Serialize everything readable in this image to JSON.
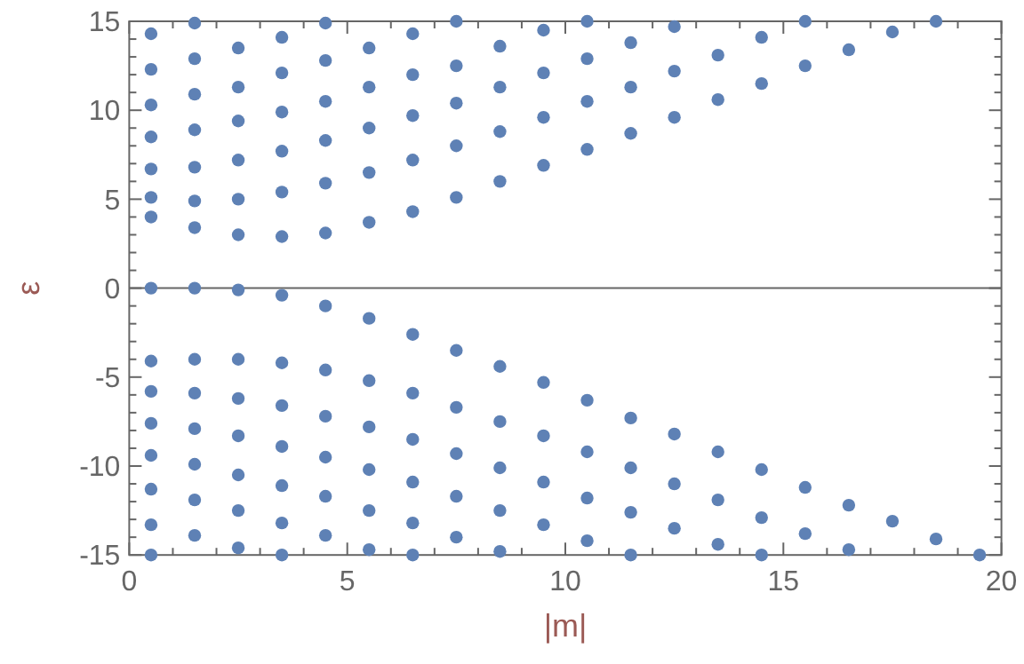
{
  "chart_data": {
    "type": "scatter",
    "xlabel": "|m|",
    "ylabel": "ε",
    "xlim": [
      0,
      20
    ],
    "ylim": [
      -15,
      15
    ],
    "marker": "circle",
    "grid": false,
    "xticks": [
      0,
      {
        "value": 1,
        "label": null
      },
      {
        "value": 2,
        "label": null
      },
      {
        "value": 3,
        "label": null
      },
      {
        "value": 4,
        "label": null
      },
      5,
      {
        "value": 6,
        "label": null
      },
      {
        "value": 7,
        "label": null
      },
      {
        "value": 8,
        "label": null
      },
      {
        "value": 9,
        "label": null
      },
      10,
      {
        "value": 11,
        "label": null
      },
      {
        "value": 12,
        "label": null
      },
      {
        "value": 13,
        "label": null
      },
      {
        "value": 14,
        "label": null
      },
      15,
      {
        "value": 16,
        "label": null
      },
      {
        "value": 17,
        "label": null
      },
      {
        "value": 18,
        "label": null
      },
      {
        "value": 19,
        "label": null
      },
      20
    ],
    "yticks": [
      -15,
      {
        "value": -14,
        "label": null
      },
      {
        "value": -13,
        "label": null
      },
      {
        "value": -12,
        "label": null
      },
      {
        "value": -11,
        "label": null
      },
      -10,
      {
        "value": -9,
        "label": null
      },
      {
        "value": -8,
        "label": null
      },
      {
        "value": -7,
        "label": null
      },
      {
        "value": -6,
        "label": null
      },
      -5,
      {
        "value": -4,
        "label": null
      },
      {
        "value": -3,
        "label": null
      },
      {
        "value": -2,
        "label": null
      },
      {
        "value": -1,
        "label": null
      },
      0,
      {
        "value": 1,
        "label": null
      },
      {
        "value": 2,
        "label": null
      },
      {
        "value": 3,
        "label": null
      },
      {
        "value": 4,
        "label": null
      },
      5,
      {
        "value": 6,
        "label": null
      },
      {
        "value": 7,
        "label": null
      },
      {
        "value": 8,
        "label": null
      },
      {
        "value": 9,
        "label": null
      },
      10,
      {
        "value": 11,
        "label": null
      },
      {
        "value": 12,
        "label": null
      },
      {
        "value": 13,
        "label": null
      },
      {
        "value": 14,
        "label": null
      },
      15
    ],
    "ref_lines": [
      {
        "axis": "y",
        "value": 0,
        "color": "#666666"
      }
    ],
    "series": [
      {
        "color": "#5e81b5",
        "x": [
          0.5,
          0.5,
          0.5,
          0.5,
          0.5,
          0.5,
          0.5,
          0.5,
          0.5,
          0.5,
          0.5,
          0.5,
          0.5,
          0.5,
          0.5,
          1.5,
          1.5,
          1.5,
          1.5,
          1.5,
          1.5,
          1.5,
          1.5,
          1.5,
          1.5,
          1.5,
          1.5,
          1.5,
          1.5,
          2.5,
          2.5,
          2.5,
          2.5,
          2.5,
          2.5,
          2.5,
          2.5,
          2.5,
          2.5,
          2.5,
          2.5,
          2.5,
          3.5,
          3.5,
          3.5,
          3.5,
          3.5,
          3.5,
          3.5,
          3.5,
          3.5,
          3.5,
          3.5,
          3.5,
          3.5,
          4.5,
          4.5,
          4.5,
          4.5,
          4.5,
          4.5,
          4.5,
          4.5,
          4.5,
          4.5,
          4.5,
          4.5,
          5.5,
          5.5,
          5.5,
          5.5,
          5.5,
          5.5,
          5.5,
          5.5,
          5.5,
          5.5,
          5.5,
          6.5,
          6.5,
          6.5,
          6.5,
          6.5,
          6.5,
          6.5,
          6.5,
          6.5,
          6.5,
          6.5,
          7.5,
          7.5,
          7.5,
          7.5,
          7.5,
          7.5,
          7.5,
          7.5,
          7.5,
          7.5,
          8.5,
          8.5,
          8.5,
          8.5,
          8.5,
          8.5,
          8.5,
          8.5,
          8.5,
          9.5,
          9.5,
          9.5,
          9.5,
          9.5,
          9.5,
          9.5,
          9.5,
          10.5,
          10.5,
          10.5,
          10.5,
          10.5,
          10.5,
          10.5,
          10.5,
          11.5,
          11.5,
          11.5,
          11.5,
          11.5,
          11.5,
          11.5,
          12.5,
          12.5,
          12.5,
          12.5,
          12.5,
          12.5,
          13.5,
          13.5,
          13.5,
          13.5,
          13.5,
          14.5,
          14.5,
          14.5,
          14.5,
          14.5,
          15.5,
          15.5,
          15.5,
          15.5,
          16.5,
          16.5,
          16.5,
          17.5,
          17.5,
          18.5,
          18.5,
          19.5
        ],
        "values": [
          14.3,
          12.3,
          10.3,
          8.5,
          6.7,
          5.1,
          4.0,
          0,
          -4.1,
          -5.8,
          -7.6,
          -9.4,
          -11.3,
          -13.3,
          -15,
          14.9,
          12.9,
          10.9,
          8.9,
          6.8,
          4.9,
          3.4,
          0,
          -4.0,
          -5.9,
          -7.9,
          -9.9,
          -11.9,
          -13.9,
          13.5,
          11.3,
          9.4,
          7.2,
          5.0,
          3.0,
          -0.1,
          -4.0,
          -6.2,
          -8.3,
          -10.5,
          -12.5,
          -14.6,
          14.1,
          12.1,
          9.9,
          7.7,
          5.4,
          2.9,
          -0.4,
          -4.2,
          -6.6,
          -8.9,
          -11.1,
          -13.2,
          -15,
          14.9,
          12.8,
          10.5,
          8.3,
          5.9,
          3.1,
          -1.0,
          -4.6,
          -7.2,
          -9.5,
          -11.7,
          -13.9,
          13.5,
          11.3,
          9.0,
          6.5,
          3.7,
          -1.7,
          -5.2,
          -7.8,
          -10.2,
          -12.5,
          -14.7,
          14.3,
          12.0,
          9.7,
          7.2,
          4.3,
          -2.6,
          -5.9,
          -8.5,
          -10.9,
          -13.2,
          -15,
          15,
          12.5,
          10.4,
          8.0,
          5.1,
          -3.5,
          -6.7,
          -9.3,
          -11.7,
          -14.0,
          13.6,
          11.3,
          8.8,
          6.0,
          -4.4,
          -7.5,
          -10.1,
          -12.5,
          -14.8,
          14.5,
          12.1,
          9.6,
          6.9,
          -5.3,
          -8.3,
          -10.9,
          -13.3,
          15,
          12.9,
          10.5,
          7.8,
          -6.3,
          -9.2,
          -11.8,
          -14.2,
          13.8,
          11.3,
          8.7,
          -7.3,
          -10.1,
          -12.6,
          -15,
          14.7,
          12.2,
          9.6,
          -8.2,
          -11.0,
          -13.5,
          13.1,
          10.6,
          -9.2,
          -11.9,
          -14.4,
          14.1,
          11.5,
          -10.2,
          -12.9,
          -15,
          15,
          12.5,
          -11.2,
          -13.8,
          13.4,
          -12.2,
          -14.7,
          14.4,
          -13.1,
          15,
          -14.1,
          -15
        ]
      }
    ]
  }
}
